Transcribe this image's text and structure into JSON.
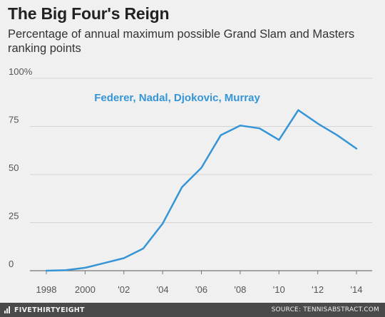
{
  "title": "The Big Four's Reign",
  "subtitle": "Percentage of annual maximum possible Grand Slam and Masters ranking points",
  "chart_data": {
    "type": "line",
    "ylim": [
      0,
      100
    ],
    "xlim": [
      1998,
      2014
    ],
    "yticks": [
      {
        "value": 0,
        "label": "0"
      },
      {
        "value": 25,
        "label": "25"
      },
      {
        "value": 50,
        "label": "50"
      },
      {
        "value": 75,
        "label": "75"
      },
      {
        "value": 100,
        "label": "100%"
      }
    ],
    "xticks": [
      {
        "value": 1998,
        "label": "1998"
      },
      {
        "value": 2000,
        "label": "2000"
      },
      {
        "value": 2002,
        "label": "'02"
      },
      {
        "value": 2004,
        "label": "'04"
      },
      {
        "value": 2006,
        "label": "'06"
      },
      {
        "value": 2008,
        "label": "'08"
      },
      {
        "value": 2010,
        "label": "'10"
      },
      {
        "value": 2012,
        "label": "'12"
      },
      {
        "value": 2014,
        "label": "'14"
      }
    ],
    "grid": true,
    "series": [
      {
        "name": "Federer, Nadal, Djokovic, Murray",
        "color": "#3595d6",
        "x": [
          1998,
          1999,
          2000,
          2001,
          2002,
          2003,
          2004,
          2005,
          2006,
          2007,
          2008,
          2009,
          2010,
          2011,
          2012,
          2013,
          2014
        ],
        "y": [
          0,
          0.3,
          1.5,
          4,
          6.5,
          11.5,
          24.5,
          43.5,
          53.5,
          70.5,
          75.5,
          74,
          68,
          83.5,
          76.5,
          70.5,
          63.5
        ]
      }
    ]
  },
  "footer": {
    "brand": "FIVETHIRTYEIGHT",
    "brand_icon": "fivethirtyeight-logo-icon",
    "source": "SOURCE: TENNISABSTRACT.COM",
    "bar_color": "#4a4a4a"
  }
}
